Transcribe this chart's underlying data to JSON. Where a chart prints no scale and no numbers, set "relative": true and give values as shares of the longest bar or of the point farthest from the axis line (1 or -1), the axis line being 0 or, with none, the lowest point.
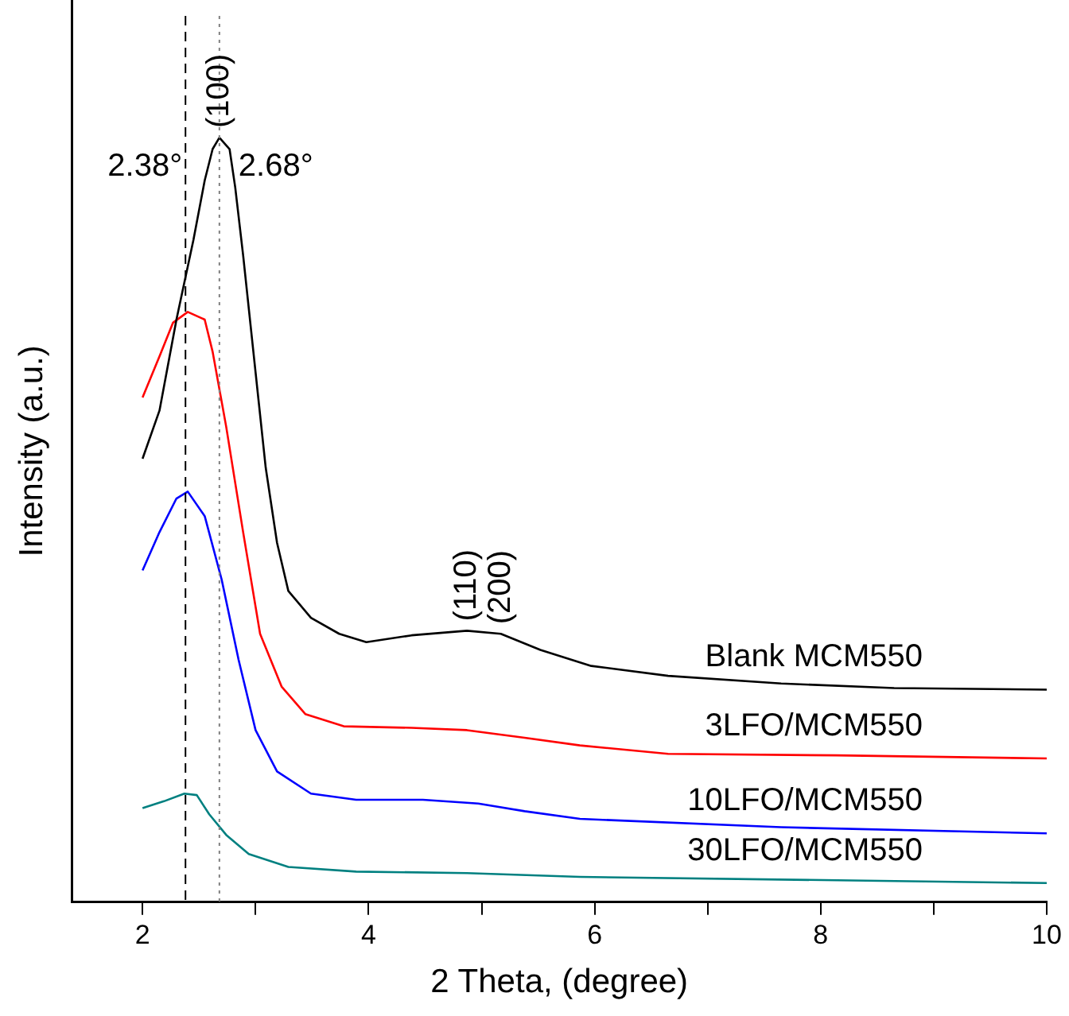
{
  "chart_data": {
    "type": "line",
    "xlabel": "2 Theta, (degree)",
    "ylabel": "Intensity (a.u.)",
    "relative": true,
    "xlim": [
      1.375,
      10
    ],
    "xticks": [
      2,
      {
        "value": 3,
        "label": null
      },
      4,
      {
        "value": 5,
        "label": null
      },
      6,
      {
        "value": 7,
        "label": null
      },
      8,
      {
        "value": 9,
        "label": null
      },
      10
    ],
    "grid": false,
    "legend": false,
    "marker": "none",
    "line_style": "solid",
    "series": [
      {
        "name": "Blank MCM550",
        "color": "#000000",
        "x": [
          2.0,
          2.15,
          2.3,
          2.45,
          2.55,
          2.62,
          2.68,
          2.77,
          2.82,
          2.89,
          3.0,
          3.09,
          3.19,
          3.29,
          3.49,
          3.74,
          3.98,
          4.38,
          4.87,
          5.17,
          5.52,
          5.97,
          6.65,
          7.65,
          8.65,
          10.0
        ],
        "values": [
          0.58,
          0.643,
          0.762,
          0.866,
          0.944,
          0.985,
          1.0,
          0.985,
          0.935,
          0.846,
          0.693,
          0.568,
          0.47,
          0.407,
          0.372,
          0.351,
          0.34,
          0.349,
          0.355,
          0.351,
          0.33,
          0.309,
          0.296,
          0.286,
          0.28,
          0.278
        ]
      },
      {
        "name": "3LFO/MCM550",
        "color": "#ff0000",
        "x": [
          2.0,
          2.15,
          2.27,
          2.4,
          2.55,
          2.62,
          2.74,
          2.89,
          3.04,
          3.23,
          3.44,
          3.78,
          4.38,
          4.87,
          5.38,
          5.87,
          6.65,
          8.14,
          10.0
        ],
        "values": [
          0.66,
          0.714,
          0.758,
          0.772,
          0.762,
          0.72,
          0.622,
          0.484,
          0.351,
          0.282,
          0.246,
          0.23,
          0.228,
          0.225,
          0.215,
          0.205,
          0.194,
          0.192,
          0.188
        ]
      },
      {
        "name": "10LFO/MCM550",
        "color": "#0000ff",
        "x": [
          2.0,
          2.15,
          2.3,
          2.4,
          2.55,
          2.7,
          2.85,
          3.0,
          3.19,
          3.49,
          3.89,
          4.48,
          4.97,
          5.38,
          5.87,
          7.65,
          10.0
        ],
        "values": [
          0.434,
          0.484,
          0.528,
          0.537,
          0.505,
          0.422,
          0.317,
          0.225,
          0.171,
          0.142,
          0.134,
          0.134,
          0.129,
          0.119,
          0.109,
          0.098,
          0.09
        ]
      },
      {
        "name": "30LFO/MCM550",
        "color": "#008080",
        "x": [
          2.0,
          2.19,
          2.37,
          2.48,
          2.59,
          2.74,
          2.94,
          3.29,
          3.89,
          4.87,
          5.87,
          10.0
        ],
        "values": [
          0.123,
          0.132,
          0.142,
          0.14,
          0.115,
          0.088,
          0.063,
          0.046,
          0.04,
          0.038,
          0.033,
          0.025
        ]
      }
    ],
    "ref_lines": [
      {
        "axis": "x",
        "value": 2.38,
        "label": "2.38°",
        "line_style": "dashed",
        "color": "#000000"
      },
      {
        "axis": "x",
        "value": 2.68,
        "label": "2.68°",
        "line_style": "dotted",
        "color": "#808080"
      }
    ],
    "annotations": [
      {
        "text": "(100)",
        "x": 2.68,
        "y": 1.0
      },
      {
        "text": "(110)",
        "x": 4.87,
        "y": 0.355
      },
      {
        "text": "(200)",
        "x": 5.17,
        "y": 0.351
      }
    ]
  }
}
